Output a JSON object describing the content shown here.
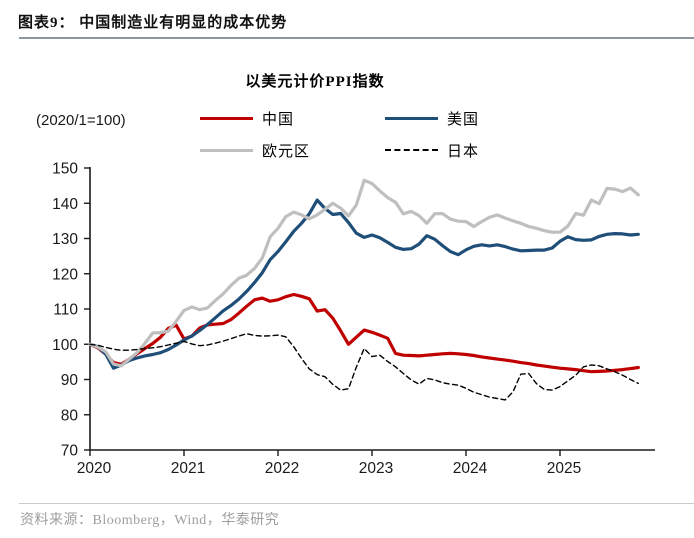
{
  "page": {
    "title": "图表9：  中国制造业有明显的成本优势",
    "source": "资料来源：Bloomberg，Wind，华泰研究"
  },
  "chart_data": {
    "type": "line",
    "title": "以美元计价PPI指数",
    "unit_label": "(2020/1=100)",
    "x_start_year": 2020,
    "points_per_year": 12,
    "xlim": [
      2020,
      2026.01
    ],
    "ylim": [
      70,
      150
    ],
    "yticks": [
      70,
      80,
      90,
      100,
      110,
      120,
      130,
      140,
      150
    ],
    "xticks": [
      2020,
      2021,
      2022,
      2023,
      2024,
      2025
    ],
    "grid": false,
    "legend_position": "top",
    "series": [
      {
        "key": "china",
        "name": "中国",
        "color": "#c00000",
        "style": "solid",
        "values": [
          100,
          99.0,
          97.2,
          94.8,
          94.3,
          95.8,
          97.3,
          98.8,
          100.2,
          102.0,
          104.5,
          105.4,
          101.5,
          102.3,
          104.6,
          105.5,
          105.7,
          105.9,
          107.0,
          108.8,
          110.8,
          112.6,
          113.1,
          112.2,
          112.6,
          113.5,
          114.1,
          113.6,
          112.9,
          109.4,
          109.8,
          107.4,
          103.8,
          100.0,
          102.0,
          104.0,
          103.4,
          102.6,
          101.7,
          97.4,
          96.9,
          96.8,
          96.7,
          96.9,
          97.1,
          97.3,
          97.4,
          97.3,
          97.1,
          96.8,
          96.4,
          96.1,
          95.8,
          95.5,
          95.2,
          94.8,
          94.5,
          94.1,
          93.8,
          93.5,
          93.2,
          93.0,
          92.8,
          92.5,
          92.2,
          92.3,
          92.4,
          92.6,
          92.8,
          93.1,
          93.4
        ]
      },
      {
        "key": "us",
        "name": "美国",
        "color": "#1f4e79",
        "style": "solid",
        "values": [
          100,
          99.3,
          97.2,
          93.2,
          94.1,
          95.4,
          96.1,
          96.7,
          97.1,
          97.6,
          98.5,
          99.8,
          101.2,
          102.3,
          103.9,
          105.6,
          107.5,
          109.5,
          111.0,
          112.8,
          115.0,
          117.5,
          120.3,
          124.0,
          126.3,
          129.1,
          132.0,
          134.3,
          137.0,
          140.9,
          138.5,
          136.8,
          137.1,
          134.5,
          131.5,
          130.3,
          131.0,
          130.2,
          128.9,
          127.5,
          126.9,
          127.1,
          128.4,
          130.8,
          129.8,
          128.0,
          126.3,
          125.4,
          126.8,
          127.8,
          128.2,
          127.9,
          128.2,
          127.7,
          127.0,
          126.5,
          126.6,
          126.7,
          126.7,
          127.3,
          129.2,
          130.5,
          129.7,
          129.5,
          129.6,
          130.6,
          131.2,
          131.4,
          131.3,
          131.0,
          131.2
        ]
      },
      {
        "key": "eurozone",
        "name": "欧元区",
        "color": "#bfbfbf",
        "style": "solid",
        "values": [
          100,
          99.2,
          97.9,
          94.4,
          93.9,
          95.8,
          97.6,
          100.2,
          103.2,
          103.3,
          103.7,
          106.5,
          109.6,
          110.6,
          109.8,
          110.3,
          112.4,
          114.3,
          116.7,
          118.7,
          119.6,
          121.5,
          124.5,
          130.5,
          132.9,
          136.2,
          137.5,
          136.7,
          135.6,
          136.7,
          138.3,
          140.0,
          138.6,
          136.4,
          139.5,
          146.5,
          145.6,
          143.5,
          141.6,
          140.3,
          137.0,
          137.7,
          136.5,
          134.3,
          137.0,
          137.1,
          135.5,
          134.9,
          134.8,
          133.4,
          134.8,
          136.0,
          136.7,
          135.8,
          135.0,
          134.3,
          133.4,
          132.9,
          132.2,
          131.8,
          131.8,
          133.5,
          137.1,
          136.6,
          140.9,
          139.9,
          144.2,
          144.0,
          143.3,
          144.3,
          142.4
        ]
      },
      {
        "key": "japan",
        "name": "日本",
        "color": "#000000",
        "style": "dashed",
        "values": [
          100,
          99.7,
          99.1,
          98.6,
          98.3,
          98.3,
          98.5,
          98.8,
          99.0,
          99.3,
          99.8,
          100.3,
          100.8,
          100.1,
          99.6,
          99.8,
          100.3,
          100.9,
          101.6,
          102.3,
          103.0,
          102.5,
          102.3,
          102.4,
          102.6,
          102.1,
          99.3,
          96.0,
          93.0,
          91.4,
          90.8,
          88.6,
          87.0,
          87.4,
          93.5,
          98.8,
          96.5,
          96.9,
          95.1,
          93.6,
          91.7,
          89.9,
          88.7,
          90.3,
          89.9,
          89.1,
          88.7,
          88.4,
          87.5,
          86.4,
          85.7,
          85.0,
          84.6,
          84.2,
          86.5,
          91.5,
          91.7,
          88.8,
          87.2,
          87.0,
          88.0,
          89.6,
          91.2,
          93.6,
          94.1,
          93.9,
          93.0,
          92.2,
          91.2,
          90.0,
          88.9
        ]
      }
    ]
  }
}
